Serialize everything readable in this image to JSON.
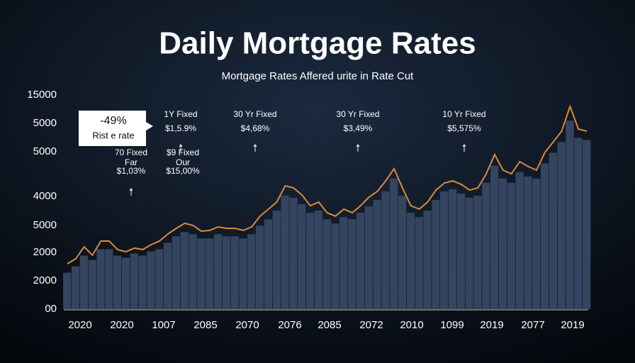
{
  "chart_data": {
    "type": "area-bar",
    "title": "Daily Mortgage Rates",
    "subtitle": "Mortgage Rates Affered urite in Rate Cut",
    "line_color": "#d98a3a",
    "bar_color": "#34455f",
    "ylim": [
      0,
      100
    ],
    "values": [
      21.2,
      23.5,
      29.1,
      25.2,
      31.8,
      31.8,
      27.8,
      26.8,
      28.5,
      27.8,
      30.1,
      31.8,
      35.1,
      37.7,
      40.1,
      39.1,
      36.4,
      36.8,
      38.4,
      37.7,
      37.7,
      36.8,
      38.4,
      43.4,
      46.7,
      50.0,
      57.6,
      56.6,
      53.3,
      48.3,
      50.0,
      45.0,
      43.4,
      46.7,
      45.0,
      48.3,
      52.3,
      55.0,
      59.9,
      65.6,
      56.6,
      48.3,
      46.7,
      50.0,
      55.6,
      58.9,
      59.9,
      58.3,
      55.6,
      56.6,
      63.2,
      72.2,
      64.9,
      63.2,
      68.9,
      66.6,
      64.9,
      73.2,
      78.1,
      83.1,
      94.7,
      84.1,
      83.1
    ],
    "bar_values": [
      17,
      20,
      25,
      23,
      28,
      28,
      25,
      24,
      26,
      25,
      27,
      28,
      31,
      34,
      36,
      35,
      33,
      33,
      35,
      34,
      34,
      33,
      35,
      39,
      42,
      46,
      53,
      52,
      49,
      45,
      46,
      42,
      40,
      43,
      42,
      45,
      48,
      51,
      55,
      61,
      53,
      45,
      43,
      46,
      51,
      55,
      56,
      54,
      52,
      53,
      59,
      67,
      61,
      59,
      64,
      62,
      61,
      68,
      73,
      78,
      88,
      80,
      79
    ],
    "y_labels": [
      "15000",
      "5000",
      "5000",
      "4000",
      "5000",
      "2000",
      "2000",
      "00"
    ],
    "x_labels": [
      "2020",
      "2020",
      "1007",
      "2085",
      "2070",
      "2076",
      "2085",
      "2072",
      "2010",
      "1099",
      "2019",
      "2077",
      "2019"
    ],
    "callout": [
      "-49%",
      "Rist e rate"
    ],
    "annotations": [
      [
        "1Y Fixed",
        "$1,5.9%"
      ],
      [
        "30 Yr Fixed",
        "$4,68%"
      ],
      [
        "30 Yr Fixed",
        "$3,49%"
      ],
      [
        "10 Yr Fixed",
        "$5,575%"
      ],
      [
        "70 Fixed",
        "Far",
        "$1,03%"
      ],
      [
        "$9 Fixed",
        "Our",
        "$15,00%"
      ]
    ]
  }
}
